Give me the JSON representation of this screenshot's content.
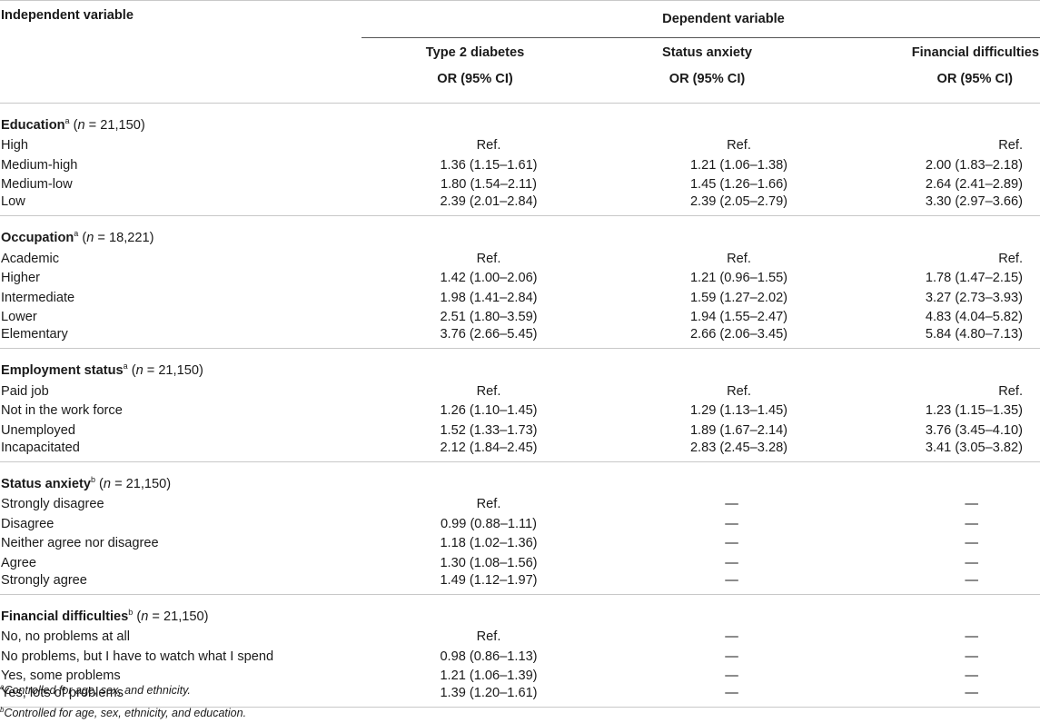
{
  "header": {
    "independent_variable": "Independent variable",
    "dependent_variable": "Dependent variable",
    "columns": [
      "Type 2 diabetes",
      "Status anxiety",
      "Financial difficulties"
    ],
    "subheader": "OR (95% CI)"
  },
  "sections": [
    {
      "label": "Education",
      "sup": "a",
      "n_prefix": "n",
      "n_suffix": " = 21,150)",
      "rows": [
        {
          "label": "High",
          "values": [
            "Ref.",
            "Ref.",
            "Ref."
          ]
        },
        {
          "label": "Medium-high",
          "values": [
            "1.36 (1.15–1.61)",
            "1.21 (1.06–1.38)",
            "2.00 (1.83–2.18)"
          ]
        },
        {
          "label": "Medium-low",
          "values": [
            "1.80 (1.54–2.11)",
            "1.45 (1.26–1.66)",
            "2.64 (2.41–2.89)"
          ]
        },
        {
          "label": "Low",
          "values": [
            "2.39 (2.01–2.84)",
            "2.39 (2.05–2.79)",
            "3.30 (2.97–3.66)"
          ]
        }
      ]
    },
    {
      "label": "Occupation",
      "sup": "a",
      "n_prefix": "n",
      "n_suffix": " = 18,221)",
      "rows": [
        {
          "label": "Academic",
          "values": [
            "Ref.",
            "Ref.",
            "Ref."
          ]
        },
        {
          "label": "Higher",
          "values": [
            "1.42 (1.00–2.06)",
            "1.21 (0.96–1.55)",
            "1.78 (1.47–2.15)"
          ]
        },
        {
          "label": "Intermediate",
          "values": [
            "1.98 (1.41–2.84)",
            "1.59 (1.27–2.02)",
            "3.27 (2.73–3.93)"
          ]
        },
        {
          "label": "Lower",
          "values": [
            "2.51 (1.80–3.59)",
            "1.94 (1.55–2.47)",
            "4.83 (4.04–5.82)"
          ]
        },
        {
          "label": "Elementary",
          "values": [
            "3.76 (2.66–5.45)",
            "2.66 (2.06–3.45)",
            "5.84 (4.80–7.13)"
          ]
        }
      ]
    },
    {
      "label": "Employment status",
      "sup": "a",
      "n_prefix": "n",
      "n_suffix": " = 21,150)",
      "rows": [
        {
          "label": "Paid job",
          "values": [
            "Ref.",
            "Ref.",
            "Ref."
          ]
        },
        {
          "label": "Not in the work force",
          "values": [
            "1.26 (1.10–1.45)",
            "1.29 (1.13–1.45)",
            "1.23 (1.15–1.35)"
          ]
        },
        {
          "label": "Unemployed",
          "values": [
            "1.52 (1.33–1.73)",
            "1.89 (1.67–2.14)",
            "3.76 (3.45–4.10)"
          ]
        },
        {
          "label": "Incapacitated",
          "values": [
            "2.12 (1.84–2.45)",
            "2.83 (2.45–3.28)",
            "3.41 (3.05–3.82)"
          ]
        }
      ]
    },
    {
      "label": "Status anxiety",
      "sup": "b",
      "n_prefix": "n",
      "n_suffix": " = 21,150)",
      "rows": [
        {
          "label": "Strongly disagree",
          "values": [
            "Ref.",
            "—",
            "—"
          ]
        },
        {
          "label": "Disagree",
          "values": [
            "0.99 (0.88–1.11)",
            "—",
            "—"
          ]
        },
        {
          "label": "Neither agree nor disagree",
          "values": [
            "1.18 (1.02–1.36)",
            "—",
            "—"
          ]
        },
        {
          "label": "Agree",
          "values": [
            "1.30 (1.08–1.56)",
            "—",
            "—"
          ]
        },
        {
          "label": "Strongly agree",
          "values": [
            "1.49 (1.12–1.97)",
            "—",
            "—"
          ]
        }
      ]
    },
    {
      "label": "Financial difficulties",
      "sup": "b",
      "n_prefix": "n",
      "n_suffix": " = 21,150)",
      "rows": [
        {
          "label": "No, no problems at all",
          "values": [
            "Ref.",
            "—",
            "—"
          ]
        },
        {
          "label": "No problems, but I have to watch what I spend",
          "values": [
            "0.98 (0.86–1.13)",
            "—",
            "—"
          ]
        },
        {
          "label": "Yes, some problems",
          "values": [
            "1.21 (1.06–1.39)",
            "—",
            "—"
          ]
        },
        {
          "label": "Yes, lots of problems",
          "values": [
            "1.39 (1.20–1.61)",
            "—",
            "—"
          ]
        }
      ]
    }
  ],
  "notes": [
    {
      "sup": "a",
      "text": "Controlled for age, sex, and ethnicity."
    },
    {
      "sup": "b",
      "text": "Controlled for age, sex, ethnicity, and education."
    }
  ]
}
